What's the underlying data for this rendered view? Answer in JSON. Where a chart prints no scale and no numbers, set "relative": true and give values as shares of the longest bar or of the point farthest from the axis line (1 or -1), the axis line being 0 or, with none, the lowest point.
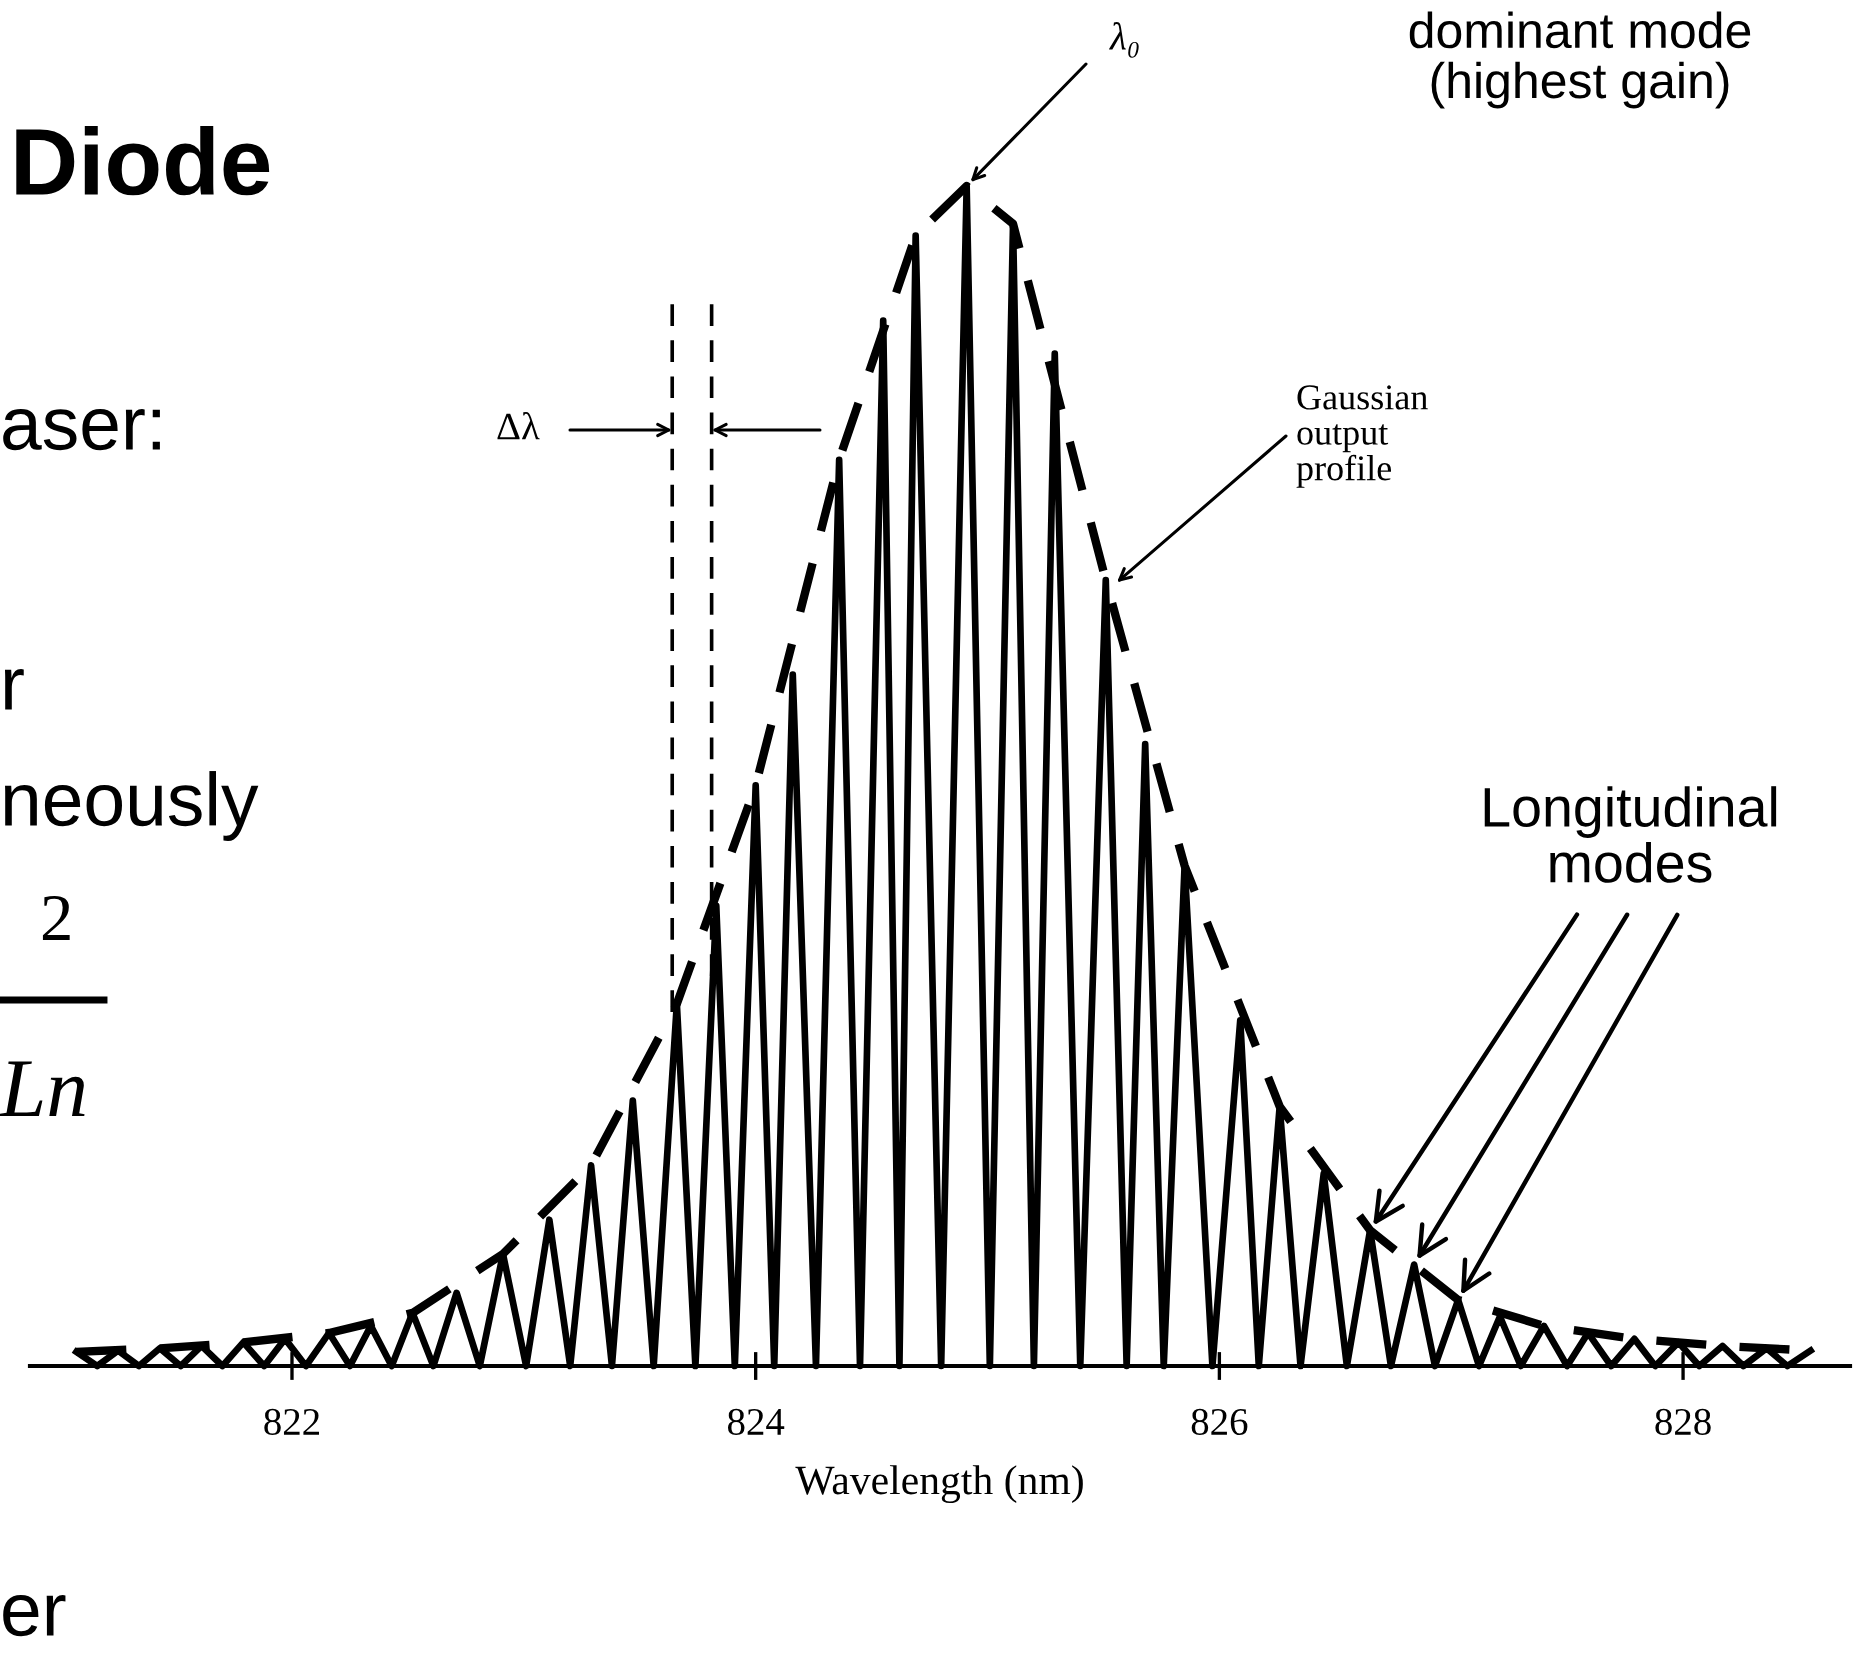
{
  "chart_data": {
    "type": "line",
    "relative": true,
    "xlabel": "Wavelength (nm)",
    "xlim": [
      820.87,
      828.72
    ],
    "xticks": [
      822,
      824,
      826,
      828
    ],
    "grid": false,
    "legend": false,
    "marker": "none",
    "series": [
      {
        "color": "#000000",
        "line_style": "solid",
        "x": [
          821.07,
          821.16,
          821.25,
          821.34,
          821.43,
          821.52,
          821.61,
          821.7,
          821.79,
          821.88,
          821.97,
          822.06,
          822.16,
          822.25,
          822.34,
          822.43,
          822.52,
          822.61,
          822.71,
          822.81,
          822.91,
          823.01,
          823.11,
          823.2,
          823.29,
          823.38,
          823.47,
          823.56,
          823.66,
          823.74,
          823.83,
          823.91,
          824.0,
          824.08,
          824.16,
          824.26,
          824.36,
          824.45,
          824.55,
          824.62,
          824.69,
          824.8,
          824.91,
          825.01,
          825.11,
          825.2,
          825.29,
          825.4,
          825.51,
          825.6,
          825.68,
          825.76,
          825.85,
          825.97,
          826.09,
          826.17,
          826.26,
          826.35,
          826.45,
          826.55,
          826.65,
          826.74,
          826.84,
          826.93,
          827.03,
          827.12,
          827.21,
          827.3,
          827.4,
          827.5,
          827.59,
          827.69,
          827.79,
          827.88,
          827.98,
          828.07,
          828.17,
          828.26,
          828.36,
          828.45,
          828.55
        ],
        "values": [
          0.012,
          0,
          0.013,
          0,
          0.015,
          0,
          0.017,
          0,
          0.02,
          0,
          0.023,
          0,
          0.028,
          0,
          0.034,
          0,
          0.045,
          0,
          0.062,
          0,
          0.095,
          0,
          0.124,
          0,
          0.17,
          0,
          0.225,
          0,
          0.307,
          0,
          0.39,
          0,
          0.492,
          0,
          0.586,
          0,
          0.768,
          0,
          0.886,
          0,
          0.958,
          0,
          1.0,
          0,
          0.968,
          0,
          0.858,
          0,
          0.666,
          0,
          0.527,
          0,
          0.424,
          0,
          0.293,
          0,
          0.22,
          0,
          0.163,
          0,
          0.115,
          0,
          0.086,
          0,
          0.056,
          0,
          0.042,
          0,
          0.034,
          0,
          0.028,
          0,
          0.023,
          0,
          0.02,
          0,
          0.017,
          0,
          0.015,
          0,
          0.013
        ]
      },
      {
        "color": "#000000",
        "line_style": "dashed",
        "x": [
          821.07,
          821.43,
          821.79,
          822.16,
          822.52,
          822.91,
          823.29,
          823.66,
          824.0,
          824.36,
          824.69,
          824.91,
          825.11,
          825.51,
          825.85,
          826.26,
          826.65,
          827.03,
          827.4,
          827.79,
          828.17,
          828.55
        ],
        "values": [
          0.012,
          0.015,
          0.02,
          0.028,
          0.045,
          0.095,
          0.17,
          0.307,
          0.492,
          0.768,
          0.958,
          1.0,
          0.968,
          0.666,
          0.424,
          0.22,
          0.115,
          0.056,
          0.034,
          0.023,
          0.017,
          0.013
        ]
      }
    ],
    "ref_lines": [
      {
        "axis": "x",
        "value": 823.64,
        "line_style": "dashed"
      },
      {
        "axis": "x",
        "value": 823.81,
        "line_style": "dashed"
      }
    ],
    "annotations": [
      "Diode",
      "aser:",
      "r",
      "neously",
      "2",
      "Ln",
      "er",
      "dominant mode\n(highest gain)",
      {
        "text": "λ₀",
        "x": 824.91,
        "y": 1.0
      },
      "Δλ",
      {
        "text": "Gaussian\noutput\nprofile",
        "x": 825.54,
        "y": 0.661
      },
      {
        "text": "Longitudinal\nmodes",
        "x": 826.84,
        "y": 0.086
      }
    ]
  }
}
